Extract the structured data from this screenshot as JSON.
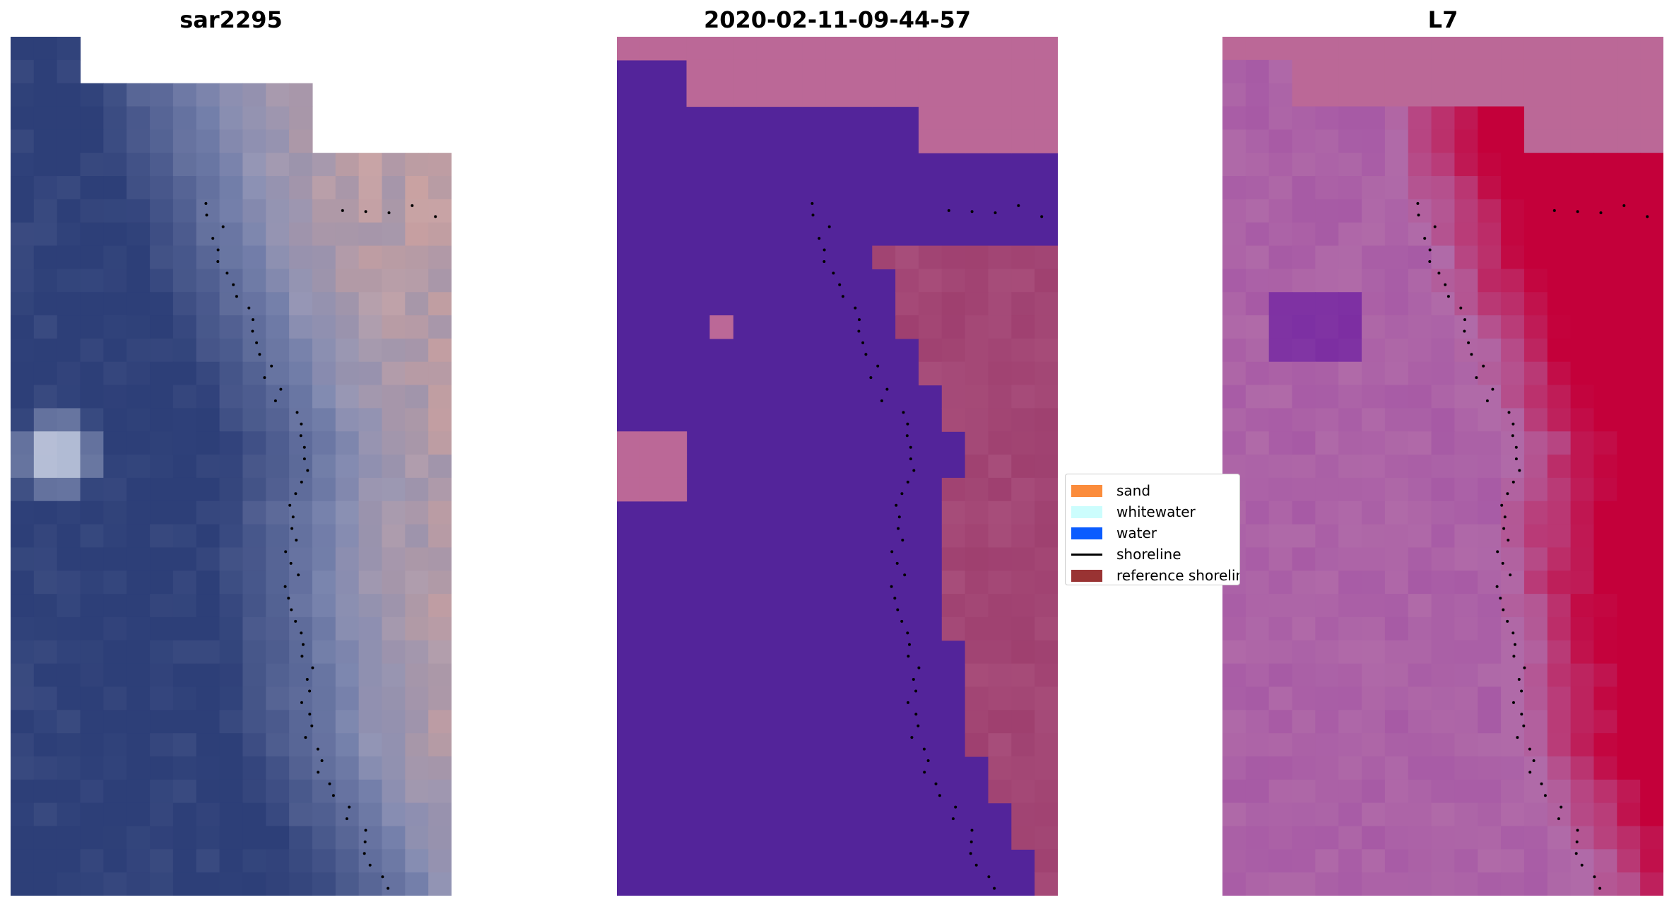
{
  "panels": [
    {
      "title": "sar2295"
    },
    {
      "title": "2020-02-11-09-44-57"
    },
    {
      "title": "L7"
    }
  ],
  "legend": {
    "items": [
      {
        "label": "sand",
        "color": "#fb8c3c",
        "kind": "patch"
      },
      {
        "label": "whitewater",
        "color": "#ccfdfd",
        "kind": "patch"
      },
      {
        "label": "water",
        "color": "#0b5cff",
        "kind": "patch"
      },
      {
        "label": "shoreline",
        "color": "#000000",
        "kind": "line"
      },
      {
        "label": "reference shoreline",
        "color": "#993333",
        "kind": "patch"
      }
    ]
  },
  "colors": {
    "water_class": "#53249a",
    "sand_class": "#bb6897",
    "mixed_class": "#a74d7a",
    "satellite_water": "#2d3f78",
    "index_high": "#c4003a",
    "index_low": "#b06aa8"
  }
}
